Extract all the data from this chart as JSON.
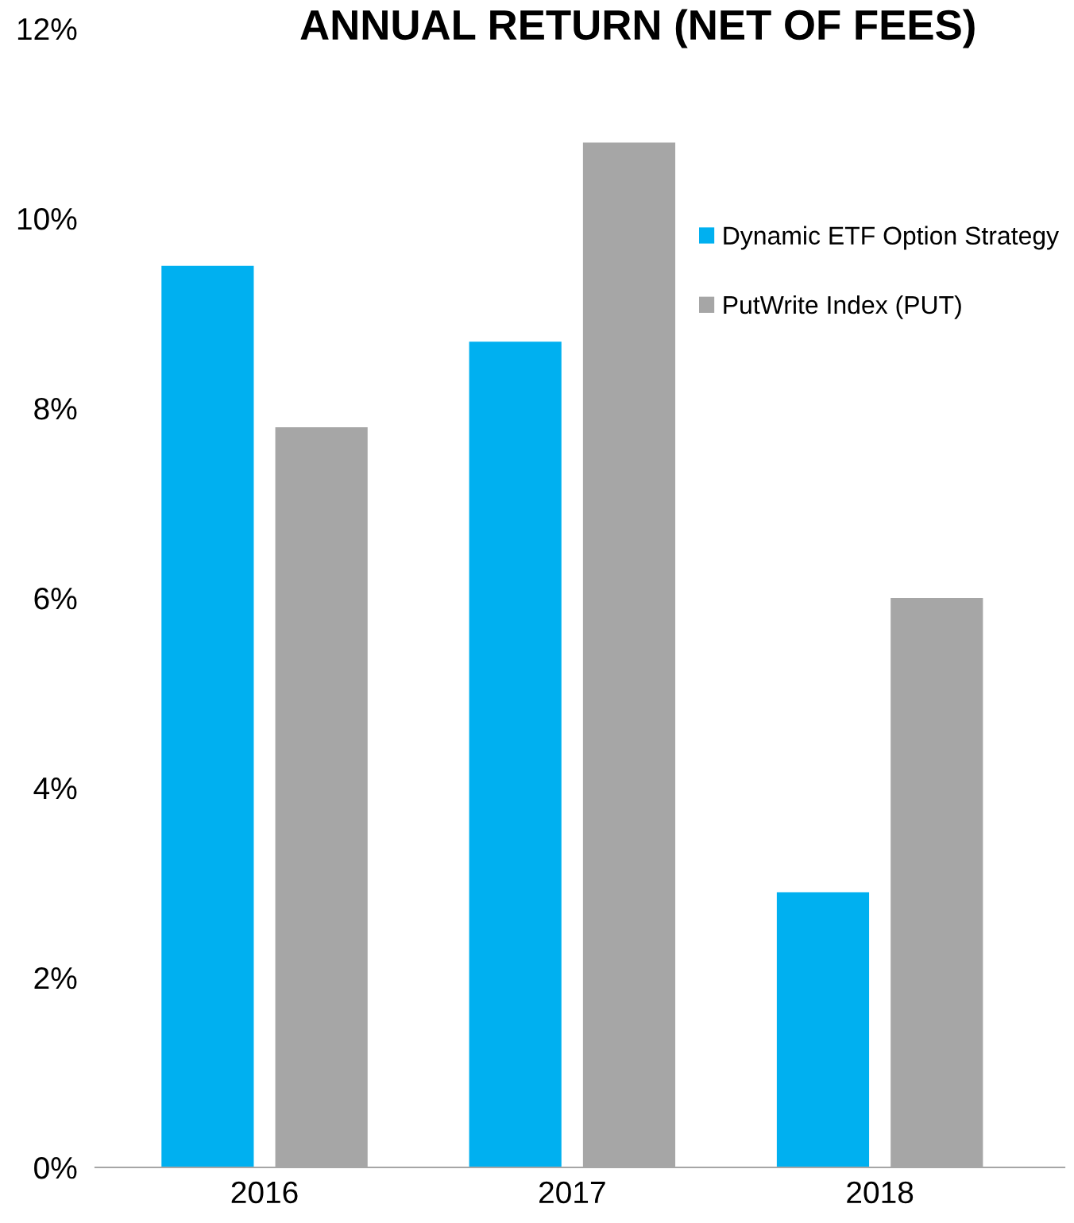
{
  "chart_data": {
    "type": "bar",
    "title": "ANNUAL RETURN (NET OF FEES)",
    "categories": [
      "2016",
      "2017",
      "2018"
    ],
    "series": [
      {
        "name": "Dynamic ETF Option Strategy",
        "color": "#00b0f0",
        "values": [
          9.5,
          8.7,
          2.9
        ]
      },
      {
        "name": "PutWrite Index (PUT)",
        "color": "#a6a6a6",
        "values": [
          7.8,
          10.8,
          6.0
        ]
      }
    ],
    "ylim": [
      0,
      12
    ],
    "yticks": [
      {
        "value": 0,
        "label": "0%"
      },
      {
        "value": 2,
        "label": "2%"
      },
      {
        "value": 4,
        "label": "4%"
      },
      {
        "value": 6,
        "label": "6%"
      },
      {
        "value": 8,
        "label": "8%"
      },
      {
        "value": 10,
        "label": "10%"
      },
      {
        "value": 12,
        "label": "12%"
      }
    ],
    "legend": "right"
  }
}
